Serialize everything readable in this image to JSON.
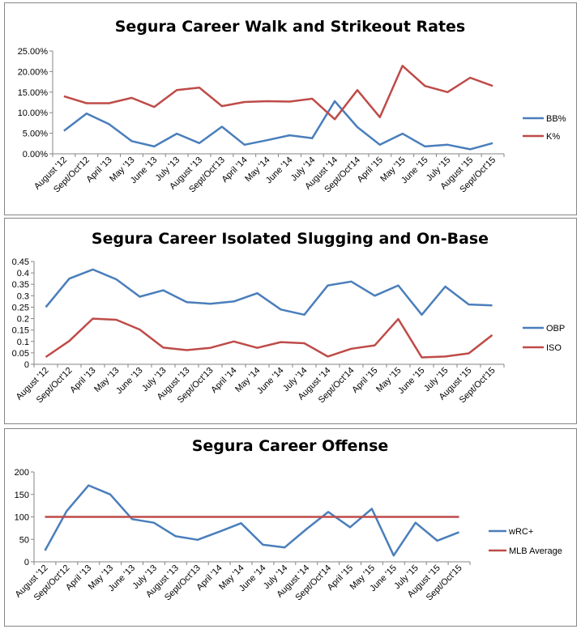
{
  "colors": {
    "blue": "#4a7ebb",
    "red": "#be4b48"
  },
  "chart_data": [
    {
      "type": "line",
      "title": "Segura Career Walk and Strikeout Rates",
      "categories": [
        "August '12",
        "Sept/Oct'12",
        "April '13",
        "May '13",
        "June '13",
        "July '13",
        "August '13",
        "Sept/Oct'13",
        "April '14",
        "May '14",
        "June '14",
        "July '14",
        "August '14",
        "Sept/Oct'14",
        "April '15",
        "May '15",
        "June '15",
        "July '15",
        "August '15",
        "Sept/Oct'15"
      ],
      "ylim": [
        0,
        0.25
      ],
      "yticks": [
        0,
        0.05,
        0.1,
        0.15,
        0.2,
        0.25
      ],
      "ytick_labels": [
        "0.00%",
        "5.00%",
        "10.00%",
        "15.00%",
        "20.00%",
        "25.00%"
      ],
      "legend_position": "right",
      "grid": false,
      "series": [
        {
          "name": "BB%",
          "color": "#4a7ebb",
          "values": [
            0.056,
            0.098,
            0.072,
            0.031,
            0.018,
            0.049,
            0.026,
            0.066,
            0.022,
            0.033,
            0.045,
            0.038,
            0.128,
            0.065,
            0.022,
            0.049,
            0.018,
            0.022,
            0.011,
            0.026
          ]
        },
        {
          "name": "K%",
          "color": "#be4b48",
          "values": [
            0.14,
            0.123,
            0.123,
            0.136,
            0.114,
            0.155,
            0.161,
            0.116,
            0.126,
            0.128,
            0.127,
            0.134,
            0.084,
            0.155,
            0.089,
            0.214,
            0.165,
            0.15,
            0.185,
            0.165
          ]
        }
      ]
    },
    {
      "type": "line",
      "title": "Segura Career Isolated Slugging and On-Base",
      "categories": [
        "August '12",
        "Sept/Oct'12",
        "April '13",
        "May '13",
        "June '13",
        "July '13",
        "August '13",
        "Sept/Oct'13",
        "April '14",
        "May '14",
        "June '14",
        "July '14",
        "August '14",
        "Sept/Oct'14",
        "April '15",
        "May '15",
        "June '15",
        "July '15",
        "August '15",
        "Sept/Oct'15"
      ],
      "ylim": [
        0,
        0.45
      ],
      "yticks": [
        0,
        0.05,
        0.1,
        0.15,
        0.2,
        0.25,
        0.3,
        0.35,
        0.4,
        0.45
      ],
      "ytick_labels": [
        "0",
        "0.05",
        "0.1",
        "0.15",
        "0.2",
        "0.25",
        "0.3",
        "0.35",
        "0.4",
        "0.45"
      ],
      "legend_position": "right",
      "grid": false,
      "series": [
        {
          "name": "OBP",
          "color": "#4a7ebb",
          "values": [
            0.25,
            0.375,
            0.415,
            0.372,
            0.296,
            0.324,
            0.272,
            0.265,
            0.275,
            0.311,
            0.24,
            0.217,
            0.345,
            0.362,
            0.3,
            0.345,
            0.217,
            0.34,
            0.262,
            0.258
          ]
        },
        {
          "name": "ISO",
          "color": "#be4b48",
          "values": [
            0.032,
            0.102,
            0.2,
            0.195,
            0.152,
            0.073,
            0.062,
            0.072,
            0.1,
            0.072,
            0.097,
            0.092,
            0.034,
            0.068,
            0.083,
            0.198,
            0.03,
            0.034,
            0.048,
            0.128
          ]
        }
      ]
    },
    {
      "type": "line",
      "title": "Segura Career Offense",
      "categories": [
        "August '12",
        "Sept/Oct'12",
        "April '13",
        "May '13",
        "June '13",
        "July '13",
        "August '13",
        "Sept/Oct'13",
        "April '14",
        "May '14",
        "June '14",
        "July '14",
        "August '14",
        "Sept/Oct'14",
        "April '15",
        "May '15",
        "June '15",
        "July '15",
        "August '15",
        "Sept/Oct'15"
      ],
      "ylim": [
        0,
        200
      ],
      "yticks": [
        0,
        50,
        100,
        150,
        200
      ],
      "ytick_labels": [
        "0",
        "50",
        "100",
        "150",
        "200"
      ],
      "legend_position": "right",
      "grid": false,
      "series": [
        {
          "name": "wRC+",
          "color": "#4a7ebb",
          "values": [
            25,
            113,
            170,
            150,
            95,
            87,
            57,
            49,
            67,
            86,
            38,
            32,
            73,
            111,
            77,
            118,
            14,
            87,
            47,
            66
          ]
        },
        {
          "name": "MLB Average",
          "color": "#be4b48",
          "values": [
            100,
            100,
            100,
            100,
            100,
            100,
            100,
            100,
            100,
            100,
            100,
            100,
            100,
            100,
            100,
            100,
            100,
            100,
            100,
            100
          ]
        }
      ]
    }
  ]
}
